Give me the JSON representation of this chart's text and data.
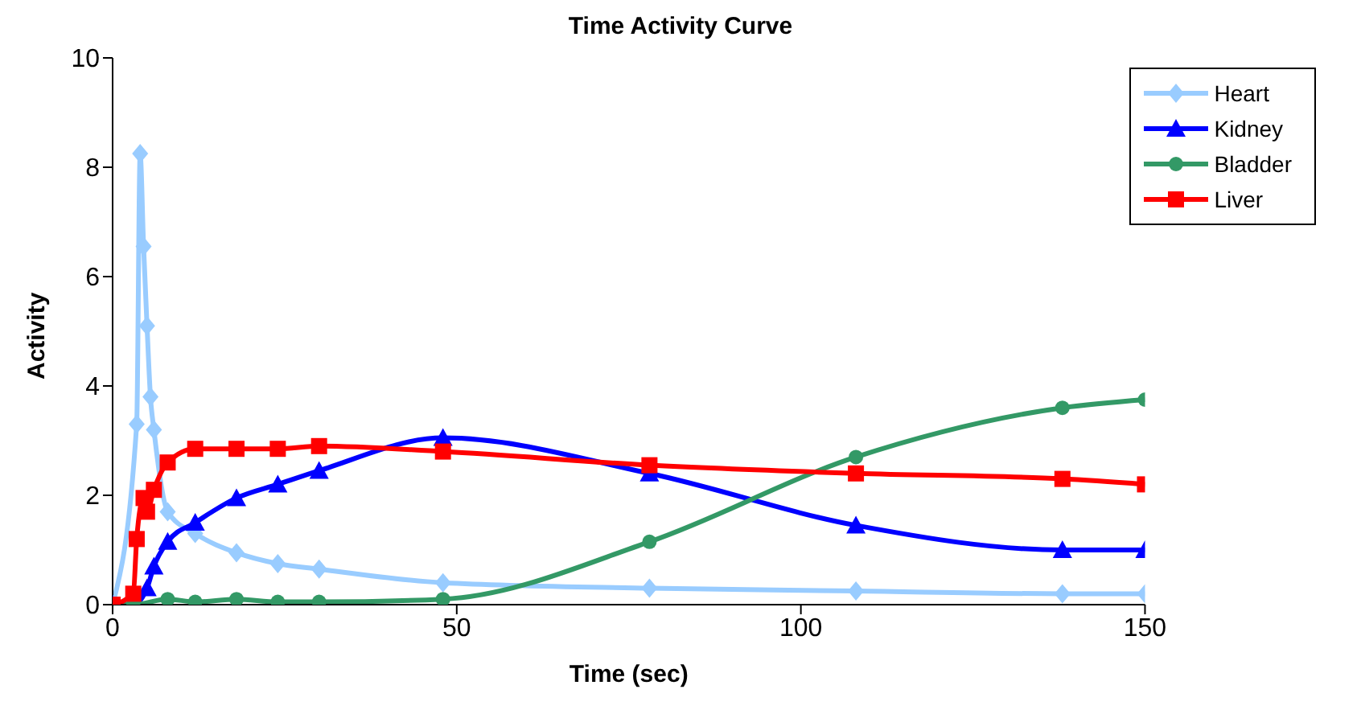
{
  "chart_data": {
    "type": "line",
    "title": "Time Activity Curve",
    "xlabel": "Time (sec)",
    "ylabel": "Activity",
    "xlim": [
      0,
      150
    ],
    "xticks": [
      0,
      50,
      100,
      150
    ],
    "ylim": [
      0,
      10
    ],
    "yticks": [
      0,
      2,
      4,
      6,
      8,
      10
    ],
    "grid": false,
    "legend": "top right",
    "line_style": "solid",
    "series": [
      {
        "name": "Heart",
        "color": "#99ccff",
        "marker": "diamond",
        "x": [
          0,
          3.5,
          4,
          4.5,
          5,
          5.5,
          6,
          8,
          12,
          18,
          24,
          30,
          48,
          78,
          108,
          138,
          150
        ],
        "values": [
          0,
          3.3,
          8.25,
          6.55,
          5.1,
          3.8,
          3.2,
          1.7,
          1.3,
          0.95,
          0.75,
          0.65,
          0.4,
          0.3,
          0.25,
          0.2,
          0.2
        ]
      },
      {
        "name": "Kidney",
        "color": "#0000ff",
        "marker": "triangle",
        "x": [
          0,
          3,
          5,
          6,
          8,
          12,
          18,
          24,
          30,
          48,
          78,
          108,
          138,
          150
        ],
        "values": [
          0,
          0,
          0.3,
          0.7,
          1.15,
          1.5,
          1.95,
          2.2,
          2.45,
          3.05,
          2.4,
          1.45,
          1.0,
          1.0
        ]
      },
      {
        "name": "Bladder",
        "color": "#339966",
        "marker": "circle",
        "x": [
          0,
          3,
          8,
          12,
          18,
          24,
          30,
          48,
          78,
          108,
          138,
          150
        ],
        "values": [
          0,
          0,
          0.1,
          0.05,
          0.1,
          0.05,
          0.05,
          0.1,
          1.15,
          2.7,
          3.6,
          3.75
        ]
      },
      {
        "name": "Liver",
        "color": "#ff0000",
        "marker": "square",
        "x": [
          0,
          3,
          3.5,
          4.5,
          5,
          6,
          8,
          12,
          18,
          24,
          30,
          48,
          78,
          108,
          138,
          150
        ],
        "values": [
          0,
          0.2,
          1.2,
          1.95,
          1.7,
          2.1,
          2.6,
          2.85,
          2.85,
          2.85,
          2.9,
          2.8,
          2.55,
          2.4,
          2.3,
          2.2
        ]
      }
    ]
  }
}
